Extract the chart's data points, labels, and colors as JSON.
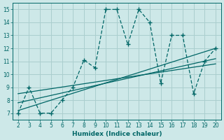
{
  "xlabel": "Humidex (Indice chaleur)",
  "xlim": [
    1.5,
    20.5
  ],
  "ylim": [
    6.5,
    15.5
  ],
  "xticks": [
    2,
    3,
    4,
    5,
    6,
    7,
    8,
    9,
    10,
    11,
    12,
    13,
    14,
    15,
    16,
    17,
    18,
    19,
    20
  ],
  "yticks": [
    7,
    8,
    9,
    10,
    11,
    12,
    13,
    14,
    15
  ],
  "bg_color": "#cde8e8",
  "grid_color": "#aacece",
  "line_color": "#006666",
  "zigzag_x": [
    2,
    3,
    4,
    5,
    6,
    7,
    8,
    9,
    10,
    11,
    12,
    13,
    14,
    15,
    16,
    17,
    18,
    19,
    20
  ],
  "zigzag_y": [
    7.0,
    9.0,
    7.0,
    7.0,
    8.0,
    9.0,
    11.1,
    10.5,
    15.0,
    15.0,
    12.3,
    15.0,
    14.0,
    9.3,
    13.0,
    13.0,
    8.5,
    11.0,
    12.0
  ],
  "line2_x": [
    2,
    20
  ],
  "line2_y": [
    7.2,
    12.0
  ],
  "line3_x": [
    2,
    20
  ],
  "line3_y": [
    7.8,
    11.2
  ],
  "line4_x": [
    2,
    20
  ],
  "line4_y": [
    8.5,
    10.8
  ]
}
